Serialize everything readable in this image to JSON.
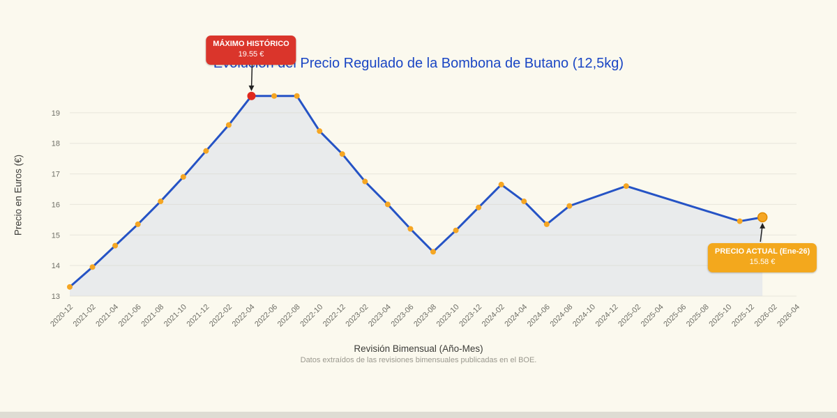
{
  "page": {
    "background_color": "#fbf9ee",
    "bottom_bar_color": "#dedcd3"
  },
  "chart_data": {
    "type": "line",
    "title": "Evolución del Precio Regulado de la Bombona de Butano (12,5kg)",
    "xlabel": "Revisión Bimensual (Año-Mes)",
    "ylabel": "Precio en Euros (€)",
    "caption": "Datos extraídos de las revisiones bimensuales publicadas en el BOE.",
    "ylim": [
      13,
      20
    ],
    "yticks": [
      13,
      14,
      15,
      16,
      17,
      18,
      19
    ],
    "x_ticks": [
      "2020-12",
      "2021-02",
      "2021-04",
      "2021-06",
      "2021-08",
      "2021-10",
      "2021-12",
      "2022-02",
      "2022-04",
      "2022-06",
      "2022-08",
      "2022-10",
      "2022-12",
      "2023-02",
      "2023-04",
      "2023-06",
      "2023-08",
      "2023-10",
      "2023-12",
      "2024-02",
      "2024-04",
      "2024-06",
      "2024-08",
      "2024-10",
      "2024-12",
      "2025-02",
      "2025-04",
      "2025-06",
      "2025-08",
      "2025-10",
      "2025-12",
      "2026-02",
      "2026-04"
    ],
    "grid": true,
    "legend": false,
    "series": [
      {
        "points": [
          {
            "x": "2020-12",
            "y": 13.3
          },
          {
            "x": "2021-02",
            "y": 13.95
          },
          {
            "x": "2021-04",
            "y": 14.65
          },
          {
            "x": "2021-06",
            "y": 15.35
          },
          {
            "x": "2021-08",
            "y": 16.1
          },
          {
            "x": "2021-10",
            "y": 16.9
          },
          {
            "x": "2021-12",
            "y": 17.75
          },
          {
            "x": "2022-02",
            "y": 18.6
          },
          {
            "x": "2022-04",
            "y": 19.55
          },
          {
            "x": "2022-06",
            "y": 19.55
          },
          {
            "x": "2022-08",
            "y": 19.55
          },
          {
            "x": "2022-10",
            "y": 18.4
          },
          {
            "x": "2022-12",
            "y": 17.65
          },
          {
            "x": "2023-02",
            "y": 16.75
          },
          {
            "x": "2023-04",
            "y": 16.0
          },
          {
            "x": "2023-06",
            "y": 15.2
          },
          {
            "x": "2023-08",
            "y": 14.45
          },
          {
            "x": "2023-10",
            "y": 15.15
          },
          {
            "x": "2023-12",
            "y": 15.9
          },
          {
            "x": "2024-02",
            "y": 16.65
          },
          {
            "x": "2024-04",
            "y": 16.1
          },
          {
            "x": "2024-06",
            "y": 15.35
          },
          {
            "x": "2024-08",
            "y": 15.95
          },
          {
            "x": "2025-01",
            "y": 16.6
          },
          {
            "x": "2025-11",
            "y": 15.45
          },
          {
            "x": "2026-01",
            "y": 15.58
          }
        ]
      }
    ],
    "annotations": {
      "max": {
        "x": "2022-04",
        "y": 19.55,
        "label": "MÁXIMO HISTÓRICO",
        "value": "19.55 €",
        "badge_color": "#da352b"
      },
      "current": {
        "x": "2026-01",
        "y": 15.58,
        "label": "PRECIO ACTUAL (Ene-26)",
        "value": "15.58 €",
        "badge_color": "#f3a81d"
      }
    },
    "colors": {
      "line": "#2553c5",
      "marker": "#f5a623",
      "marker_max": "#e0291d",
      "area": "#e7e9ec",
      "grid": "#d8d6cb",
      "tick_text": "#6e6e66",
      "title": "#1a46c4",
      "axis_label": "#3c3c38",
      "caption": "#9a988e",
      "arrow": "#222222"
    }
  }
}
